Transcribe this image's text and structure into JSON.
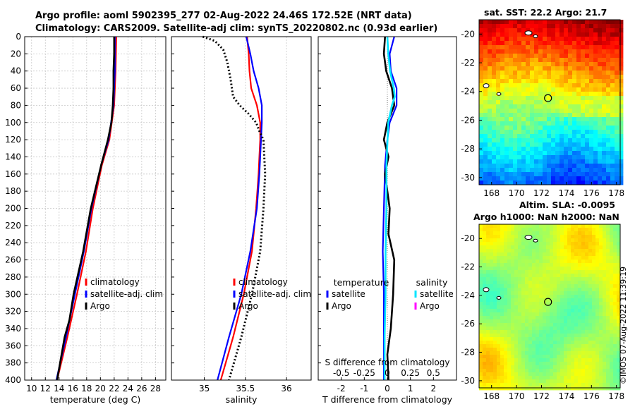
{
  "header": {
    "line1": "Argo profile: aoml 5902395_277 02-Aug-2022 24.46S 172.52E (NRT data)",
    "line2": "Climatology: CARS2009. Satellite-adj clim: synTS_20220802.nc (0.93d earlier)"
  },
  "colors": {
    "climatology": "#ff0000",
    "satellite": "#0000ff",
    "argo": "#000000",
    "sat_salinity": "#00e5ff",
    "argo_salinity": "#ff00ff"
  },
  "chart_data": [
    {
      "type": "line",
      "id": "temperature",
      "xlabel": "temperature (deg C)",
      "ylabel": "",
      "xlim": [
        9,
        29.5
      ],
      "ylim": [
        0,
        400
      ],
      "xticks": [
        "10",
        "12",
        "14",
        "16",
        "18",
        "20",
        "22",
        "24",
        "26",
        "28"
      ],
      "yticks": [
        "0",
        "20",
        "40",
        "60",
        "80",
        "100",
        "120",
        "140",
        "160",
        "180",
        "200",
        "220",
        "240",
        "260",
        "280",
        "300",
        "320",
        "340",
        "360",
        "380",
        "400"
      ],
      "series": [
        {
          "name": "climatology",
          "depth": [
            0,
            40,
            80,
            120,
            150,
            200,
            250,
            300,
            350,
            400
          ],
          "values": [
            22.3,
            22.2,
            22.0,
            21.3,
            20.2,
            18.9,
            17.9,
            16.6,
            15.2,
            13.7
          ]
        },
        {
          "name": "satellite-adj. clim",
          "depth": [
            0,
            40,
            80,
            120,
            150,
            200,
            250,
            300,
            350,
            400
          ],
          "values": [
            22.1,
            22.1,
            21.9,
            21.2,
            20.1,
            18.7,
            17.6,
            16.3,
            15.0,
            13.6
          ]
        },
        {
          "name": "Argo",
          "depth": [
            0,
            20,
            40,
            60,
            80,
            100,
            120,
            150,
            200,
            250,
            300,
            330,
            350,
            400
          ],
          "values": [
            22.0,
            22.0,
            21.9,
            21.9,
            21.8,
            21.6,
            21.1,
            20.1,
            18.6,
            17.5,
            16.1,
            15.5,
            14.8,
            13.7
          ]
        }
      ],
      "legend": [
        "climatology",
        "satellite-adj. clim",
        "Argo"
      ]
    },
    {
      "type": "line",
      "id": "salinity",
      "xlabel": "salinity",
      "xlim": [
        34.6,
        36.3
      ],
      "ylim": [
        0,
        400
      ],
      "xticks": [
        "35",
        "35.5",
        "36"
      ],
      "series": [
        {
          "name": "climatology",
          "depth": [
            0,
            20,
            40,
            60,
            80,
            100,
            120,
            140,
            160,
            200,
            250,
            300,
            350,
            400
          ],
          "values": [
            35.52,
            35.54,
            35.55,
            35.57,
            35.64,
            35.68,
            35.68,
            35.67,
            35.66,
            35.63,
            35.58,
            35.48,
            35.35,
            35.2
          ]
        },
        {
          "name": "satellite-adj. clim",
          "depth": [
            0,
            20,
            40,
            60,
            80,
            100,
            120,
            140,
            160,
            200,
            250,
            300,
            350,
            400
          ],
          "values": [
            35.51,
            35.56,
            35.6,
            35.66,
            35.7,
            35.7,
            35.69,
            35.68,
            35.67,
            35.64,
            35.56,
            35.45,
            35.3,
            35.16
          ]
        },
        {
          "name": "Argo",
          "depth": [
            0,
            5,
            15,
            30,
            50,
            70,
            80,
            90,
            100,
            110,
            120,
            140,
            160,
            200,
            250,
            300,
            350,
            400
          ],
          "values": [
            34.98,
            35.13,
            35.23,
            35.28,
            35.32,
            35.35,
            35.43,
            35.54,
            35.63,
            35.67,
            35.72,
            35.73,
            35.74,
            35.72,
            35.68,
            35.58,
            35.45,
            35.3
          ]
        }
      ],
      "legend": [
        "climatology",
        "satellite-adj. clim",
        "Argo"
      ]
    },
    {
      "type": "line",
      "id": "difference",
      "xlabel": "T difference from climatology",
      "top_label": "S difference from climatology",
      "xlim": [
        -3,
        3
      ],
      "ylim": [
        0,
        400
      ],
      "xticks": [
        "-2",
        "-1",
        "0",
        "1",
        "2"
      ],
      "top_ticks": [
        "-0.5",
        "-0.25",
        "0",
        "0.25",
        "0.5"
      ],
      "series": [
        {
          "name": "temperature satellite",
          "depth": [
            0,
            20,
            40,
            60,
            80,
            100,
            120,
            150,
            200,
            250,
            300,
            350,
            400
          ],
          "values": [
            0.3,
            0.1,
            0.15,
            0.4,
            0.4,
            0.1,
            0.0,
            -0.1,
            -0.15,
            -0.2,
            -0.15,
            -0.15,
            -0.15
          ]
        },
        {
          "name": "temperature Argo",
          "depth": [
            0,
            20,
            40,
            60,
            80,
            100,
            120,
            140,
            160,
            180,
            200,
            230,
            260,
            300,
            340,
            370,
            400
          ],
          "values": [
            -0.1,
            -0.15,
            -0.05,
            0.2,
            0.3,
            0.0,
            -0.15,
            0.05,
            -0.1,
            0.0,
            0.1,
            0.05,
            0.3,
            0.25,
            0.15,
            0.0,
            0.05
          ]
        },
        {
          "name": "salinity satellite",
          "depth": [
            0,
            20,
            40,
            60,
            70,
            80,
            100,
            150,
            200,
            250,
            300,
            350,
            400
          ],
          "values": [
            0.0,
            0.01,
            0.03,
            0.07,
            0.08,
            0.05,
            0.01,
            -0.01,
            -0.01,
            -0.02,
            -0.02,
            -0.03,
            -0.03
          ]
        }
      ],
      "legend_headers": [
        "temperature",
        "salinity"
      ],
      "legend_temperature": [
        "satellite",
        "Argo"
      ],
      "legend_salinity": [
        "satellite",
        "Argo"
      ]
    },
    {
      "type": "heatmap",
      "id": "sst_map",
      "title": "sat. SST: 22.2 Argo: 21.7",
      "xticks": [
        "168",
        "170",
        "172",
        "174",
        "176",
        "178"
      ],
      "yticks": [
        "-20",
        "-22",
        "-24",
        "-26",
        "-28",
        "-30"
      ],
      "xlim": [
        167,
        178.3
      ],
      "ylim": [
        -30.5,
        -19
      ],
      "marker": {
        "lon": 172.52,
        "lat": -24.46
      }
    },
    {
      "type": "heatmap",
      "id": "sla_map",
      "title_line1": "Altim. SLA: -0.0095",
      "title_line2": "Argo h1000: NaN h2000: NaN",
      "xticks": [
        "168",
        "170",
        "172",
        "174",
        "176",
        "178"
      ],
      "yticks": [
        "-20",
        "-22",
        "-24",
        "-26",
        "-28",
        "-30"
      ],
      "xlim": [
        167,
        178.3
      ],
      "ylim": [
        -30.5,
        -19
      ],
      "marker": {
        "lon": 172.52,
        "lat": -24.46
      }
    }
  ],
  "stamp": "©IMOS 07-Aug-2022 11:39:19"
}
